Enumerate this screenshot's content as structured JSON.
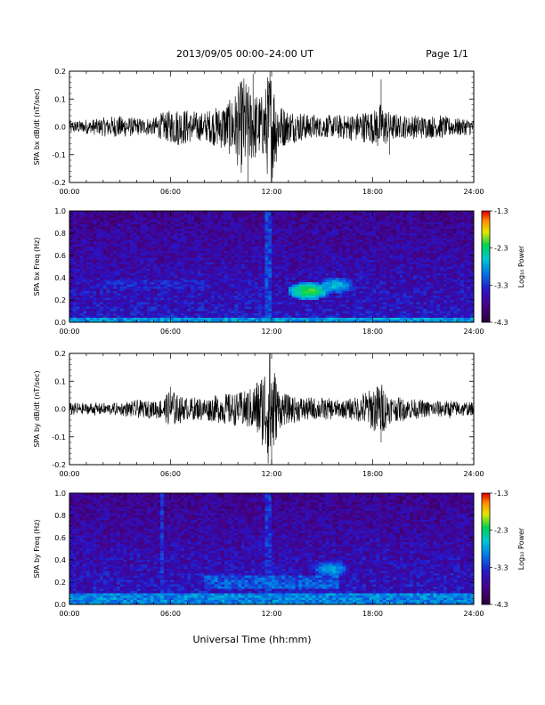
{
  "header": {
    "title": "2013/09/05  00:00–24:00 UT",
    "page": "Page 1/1"
  },
  "footer": {
    "xlabel": "Universal Time (hh:mm)"
  },
  "colorbar": {
    "label": "Log₁₀ Power",
    "ticks": [
      "-1.3",
      "-2.3",
      "-3.3",
      "-4.3"
    ],
    "range": [
      -4.3,
      -1.3
    ]
  },
  "x_ticks": [
    "00:00",
    "06:00",
    "12:00",
    "18:00",
    "24:00"
  ],
  "chart_data": [
    {
      "type": "line",
      "ylabel": "SPA bx dB/dt (nT/sec)",
      "xlim": [
        0,
        24
      ],
      "ylim": [
        -0.2,
        0.2
      ],
      "y_ticks": [
        "0.2",
        "0.1",
        "0.0",
        "-0.1",
        "-0.2"
      ],
      "y_tick_values": [
        0.2,
        0.1,
        0.0,
        -0.1,
        -0.2
      ],
      "series": [
        {
          "x": [
            0,
            2,
            3,
            4,
            5,
            5.5,
            6,
            6.5,
            7,
            8,
            9,
            9.5,
            10,
            10.3,
            10.6,
            11,
            11.5,
            11.8,
            12,
            12.3,
            12.6,
            13,
            14,
            15,
            16,
            17,
            18,
            18.5,
            19,
            20,
            21,
            22,
            23,
            24
          ],
          "envelope": [
            0.02,
            0.03,
            0.04,
            0.03,
            0.03,
            0.05,
            0.06,
            0.07,
            0.06,
            0.05,
            0.08,
            0.1,
            0.14,
            0.19,
            0.15,
            0.12,
            0.11,
            0.2,
            0.22,
            0.12,
            0.08,
            0.06,
            0.05,
            0.04,
            0.04,
            0.05,
            0.06,
            0.09,
            0.05,
            0.04,
            0.04,
            0.04,
            0.03,
            0.03
          ],
          "spikes": [
            [
              10.6,
              -0.22
            ],
            [
              10.9,
              0.19
            ],
            [
              11.9,
              0.22
            ],
            [
              12.0,
              -0.22
            ],
            [
              18.5,
              0.17
            ],
            [
              19.0,
              -0.1
            ]
          ]
        }
      ]
    },
    {
      "type": "heatmap",
      "ylabel": "SPA bx Freq (Hz)",
      "xlim": [
        0,
        24
      ],
      "ylim": [
        0,
        1.0
      ],
      "y_ticks": [
        "1.0",
        "0.8",
        "0.6",
        "0.4",
        "0.2",
        "0.0"
      ],
      "y_tick_values": [
        1.0,
        0.8,
        0.6,
        0.4,
        0.2,
        0.0
      ],
      "z_range": [
        -4.3,
        -1.3
      ],
      "features": [
        {
          "kind": "band",
          "x": [
            0,
            24
          ],
          "f": [
            0.0,
            0.05
          ],
          "power": -2.8
        },
        {
          "kind": "line",
          "x": 11.8,
          "f": [
            0.0,
            1.0
          ],
          "power": -3.2
        },
        {
          "kind": "blob",
          "x": 14.2,
          "f": 0.28,
          "power": -2.1
        },
        {
          "kind": "blob",
          "x": 15.8,
          "f": 0.33,
          "power": -2.6
        },
        {
          "kind": "band",
          "x": [
            2,
            8
          ],
          "f": [
            0.3,
            0.38
          ],
          "power": -3.4
        }
      ]
    },
    {
      "type": "line",
      "ylabel": "SPA by dB/dt (nT/sec)",
      "xlim": [
        0,
        24
      ],
      "ylim": [
        -0.2,
        0.2
      ],
      "y_ticks": [
        "0.2",
        "0.1",
        "0.0",
        "-0.1",
        "-0.2"
      ],
      "y_tick_values": [
        0.2,
        0.1,
        0.0,
        -0.1,
        -0.2
      ],
      "series": [
        {
          "x": [
            0,
            2,
            3,
            4,
            5,
            5.5,
            6,
            6.5,
            7,
            8,
            9,
            9.5,
            10,
            10.5,
            11,
            11.5,
            11.8,
            12,
            12.3,
            12.6,
            13,
            14,
            15,
            16,
            17,
            18,
            18.5,
            19,
            20,
            21,
            22,
            23,
            24
          ],
          "envelope": [
            0.02,
            0.02,
            0.02,
            0.03,
            0.03,
            0.04,
            0.07,
            0.05,
            0.04,
            0.04,
            0.05,
            0.06,
            0.06,
            0.07,
            0.09,
            0.14,
            0.2,
            0.22,
            0.1,
            0.06,
            0.05,
            0.04,
            0.04,
            0.03,
            0.04,
            0.08,
            0.1,
            0.05,
            0.04,
            0.03,
            0.03,
            0.03,
            0.02
          ],
          "spikes": [
            [
              11.9,
              0.2
            ],
            [
              12.0,
              -0.2
            ],
            [
              18.5,
              -0.12
            ],
            [
              6.0,
              0.08
            ]
          ]
        }
      ]
    },
    {
      "type": "heatmap",
      "ylabel": "SPA by Freq (Hz)",
      "xlim": [
        0,
        24
      ],
      "ylim": [
        0,
        1.0
      ],
      "y_ticks": [
        "1.0",
        "0.8",
        "0.6",
        "0.4",
        "0.2",
        "0.0"
      ],
      "y_tick_values": [
        1.0,
        0.8,
        0.6,
        0.4,
        0.2,
        0.0
      ],
      "z_range": [
        -4.3,
        -1.3
      ],
      "features": [
        {
          "kind": "band",
          "x": [
            0,
            24
          ],
          "f": [
            0.0,
            0.1
          ],
          "power": -2.9
        },
        {
          "kind": "line",
          "x": 5.5,
          "f": [
            0.0,
            1.0
          ],
          "power": -3.3
        },
        {
          "kind": "line",
          "x": 11.8,
          "f": [
            0.0,
            1.0
          ],
          "power": -3.3
        },
        {
          "kind": "blob",
          "x": 15.5,
          "f": 0.32,
          "power": -2.7
        },
        {
          "kind": "band",
          "x": [
            8,
            16
          ],
          "f": [
            0.15,
            0.25
          ],
          "power": -3.1
        }
      ]
    }
  ]
}
